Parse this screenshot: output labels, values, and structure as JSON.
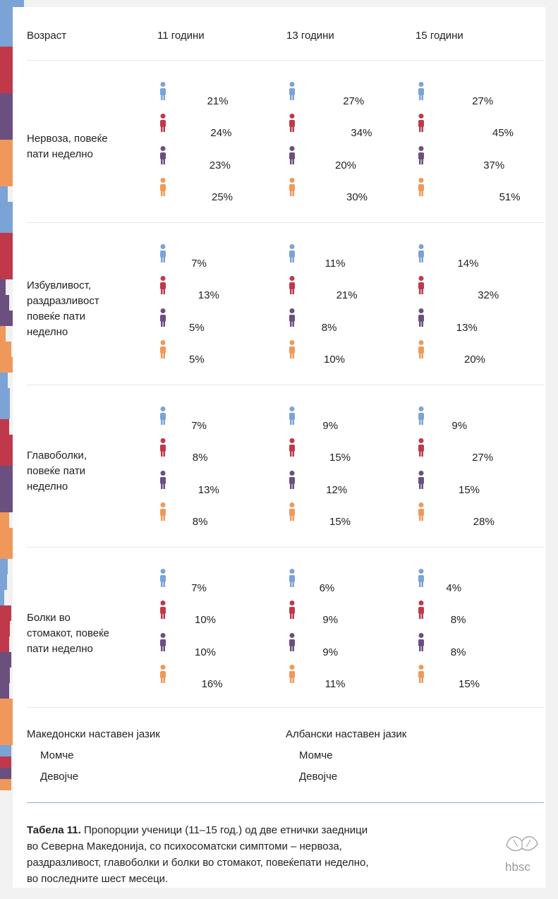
{
  "chart_data": {
    "type": "bar",
    "column_header": "Возраст",
    "columns": [
      "11 години",
      "13 години",
      "15 години"
    ],
    "categories": [
      "Нервоза, повеќе\nпати неделно",
      "Избувливост,\nраздразливост\nповеќе пати\nнеделно",
      "Главоболки,\nповеќе пати\nнеделно",
      "Болки во\nстомакот, повеќе\nпати неделно"
    ],
    "groups": [
      {
        "name": "Македонски наставен јазик",
        "series": [
          {
            "name": "Момче",
            "color": "#7ba3d6",
            "values": [
              [
                21,
                27,
                27
              ],
              [
                7,
                11,
                14
              ],
              [
                7,
                9,
                9
              ],
              [
                7,
                6,
                4
              ]
            ],
            "value_labels": [
              [
                "21%",
                "27%",
                "27%"
              ],
              [
                "7%",
                "11%",
                "14%"
              ],
              [
                "7%",
                "9%",
                "9%"
              ],
              [
                "7%",
                "6%",
                "4%"
              ]
            ]
          },
          {
            "name": "Девојче",
            "color": "#c0394b",
            "values": [
              [
                24,
                34,
                45
              ],
              [
                13,
                21,
                32
              ],
              [
                8,
                15,
                27
              ],
              [
                10,
                9,
                8
              ]
            ],
            "value_labels": [
              [
                "24%",
                "34%",
                "45%"
              ],
              [
                "13%",
                "21%",
                "32%"
              ],
              [
                "8%",
                "15%",
                "27%"
              ],
              [
                "10%",
                "9%",
                "8%"
              ]
            ]
          }
        ]
      },
      {
        "name": "Албански наставен јазик",
        "series": [
          {
            "name": "Момче",
            "color": "#6b4f7f",
            "values": [
              [
                23,
                20,
                37
              ],
              [
                5,
                8,
                13
              ],
              [
                13,
                12,
                15
              ],
              [
                10,
                9,
                8
              ]
            ],
            "value_labels": [
              [
                "23%",
                "20%",
                "37%"
              ],
              [
                "5%",
                "8%",
                "13%"
              ],
              [
                "13%",
                "12%",
                "15%"
              ],
              [
                "10%",
                "9%",
                "8%"
              ]
            ]
          },
          {
            "name": "Девојче",
            "color": "#f0985a",
            "values": [
              [
                25,
                30,
                51
              ],
              [
                5,
                10,
                20
              ],
              [
                8,
                15,
                28
              ],
              [
                16,
                11,
                15
              ]
            ],
            "value_labels": [
              [
                "25%",
                "30%",
                "51%"
              ],
              [
                "5%",
                "10%",
                "20%"
              ],
              [
                "8%",
                "15%",
                "28%"
              ],
              [
                "16%",
                "11%",
                "15%"
              ]
            ]
          }
        ]
      }
    ],
    "caption_label": "Табела 11.",
    "caption": "Пропорции ученици (11–15 год.) од две етнички заедници\nво Северна Македонија, со психосоматски симптоми – нервоза,\nраздразливост, главоболки и болки во стомакот, повеќепати неделно,\nво последните шест месеци.",
    "logo": "hbsc"
  }
}
